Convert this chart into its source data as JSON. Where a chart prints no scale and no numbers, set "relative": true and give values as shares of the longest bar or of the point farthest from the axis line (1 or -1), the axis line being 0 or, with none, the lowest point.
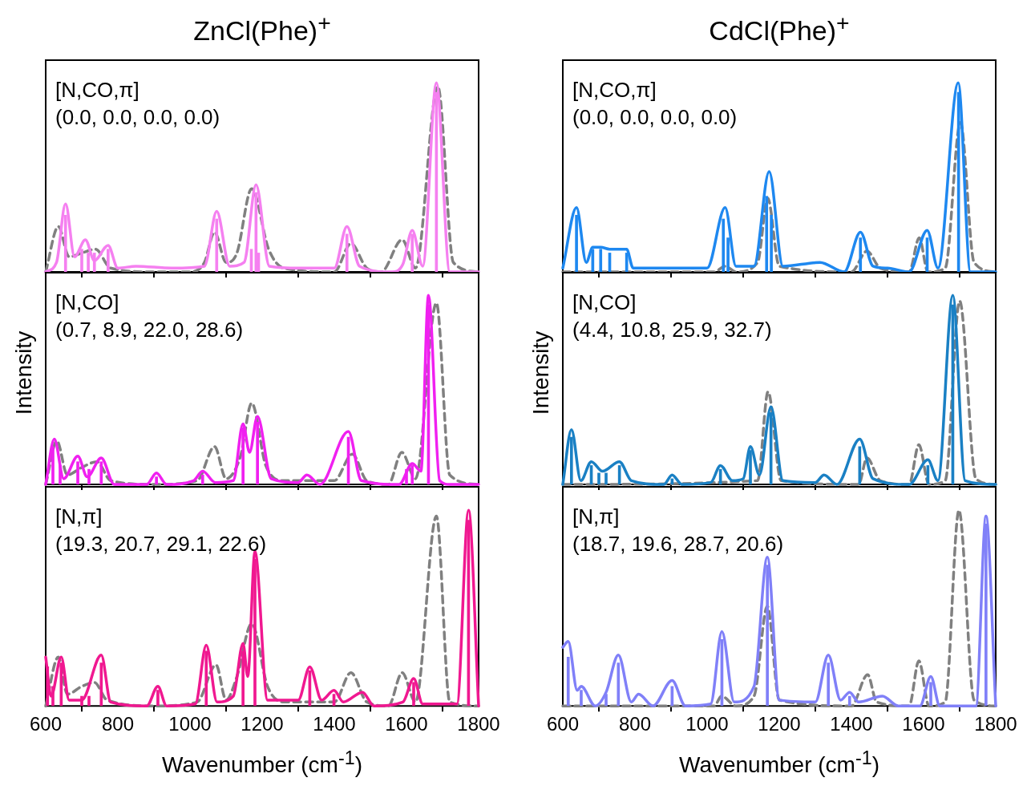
{
  "chart_data": [
    {
      "type": "line",
      "title": "ZnCl(Phe)$^{+}$",
      "relative": true,
      "xlim": [
        600,
        1800
      ],
      "xticks": [
        600,
        800,
        1000,
        1200,
        1400,
        1600,
        1800
      ],
      "tick_labels": false,
      "grid": false,
      "legend": false,
      "annotations": [
        "[N,CO,π]",
        "(0.0, 0.0, 0.0, 0.0)"
      ],
      "series": [
        {
          "type": "bar",
          "color": "#f580f0",
          "x": [
            655,
            700,
            718,
            735,
            773,
            1074,
            1170,
            1183,
            1190,
            1435,
            1616,
            1683
          ],
          "values": [
            0.3,
            0.12,
            0.1,
            0.1,
            0.12,
            0.28,
            0.12,
            0.42,
            0.1,
            0.2,
            0.2,
            0.95
          ]
        },
        {
          "type": "line",
          "color": "#f580f0",
          "line_style": "solid",
          "x": [
            600,
            630,
            655,
            680,
            710,
            735,
            773,
            800,
            850,
            950,
            1040,
            1074,
            1110,
            1150,
            1183,
            1220,
            1305,
            1400,
            1435,
            1470,
            1560,
            1590,
            1616,
            1645,
            1683,
            1720,
            1800
          ],
          "values": [
            0.0,
            0.05,
            0.36,
            0.08,
            0.17,
            0.06,
            0.14,
            0.02,
            0.03,
            0.02,
            0.03,
            0.32,
            0.03,
            0.05,
            0.46,
            0.03,
            0.02,
            0.02,
            0.24,
            0.03,
            0.0,
            0.04,
            0.22,
            0.03,
            1.0,
            0.0,
            0.0
          ]
        },
        {
          "type": "line",
          "color": "#808080",
          "line_style": "dashed",
          "x": [
            600,
            635,
            665,
            700,
            738,
            780,
            900,
            1000,
            1040,
            1068,
            1100,
            1130,
            1171,
            1218,
            1260,
            1400,
            1446,
            1490,
            1530,
            1588,
            1625,
            1687,
            1730,
            1800
          ],
          "values": [
            0.0,
            0.24,
            0.08,
            0.1,
            0.12,
            0.02,
            0.0,
            0.0,
            0.05,
            0.21,
            0.05,
            0.1,
            0.44,
            0.12,
            0.02,
            0.0,
            0.15,
            0.02,
            0.0,
            0.17,
            0.02,
            0.98,
            0.05,
            0.0
          ]
        }
      ]
    },
    {
      "type": "line",
      "title": "CdCl(Phe)$^{+}$",
      "relative": true,
      "xlim": [
        600,
        1800
      ],
      "xticks": [
        600,
        800,
        1000,
        1200,
        1400,
        1600,
        1800
      ],
      "tick_labels": false,
      "grid": false,
      "legend": false,
      "annotations": [
        "[N,CO,π]",
        "(0.0, 0.0, 0.0, 0.0)"
      ],
      "series": [
        {
          "type": "bar",
          "color": "#1e88f0",
          "x": [
            638,
            683,
            705,
            730,
            777,
            1045,
            1058,
            1165,
            1178,
            1425,
            1610,
            1697
          ],
          "values": [
            0.3,
            0.12,
            0.12,
            0.1,
            0.1,
            0.28,
            0.18,
            0.4,
            0.3,
            0.18,
            0.18,
            0.95
          ]
        },
        {
          "type": "line",
          "color": "#1e88f0",
          "line_style": "solid",
          "x": [
            600,
            638,
            665,
            683,
            705,
            730,
            777,
            795,
            850,
            1000,
            1050,
            1080,
            1130,
            1172,
            1210,
            1313,
            1380,
            1425,
            1460,
            1500,
            1560,
            1610,
            1640,
            1696,
            1730,
            1800
          ],
          "values": [
            0.02,
            0.34,
            0.05,
            0.13,
            0.13,
            0.12,
            0.12,
            0.02,
            0.02,
            0.02,
            0.34,
            0.03,
            0.03,
            0.53,
            0.03,
            0.05,
            0.0,
            0.21,
            0.03,
            0.02,
            0.0,
            0.22,
            0.02,
            1.0,
            0.0,
            0.0
          ]
        },
        {
          "type": "line",
          "color": "#808080",
          "line_style": "dashed",
          "x": [
            600,
            1020,
            1050,
            1080,
            1140,
            1168,
            1200,
            1400,
            1443,
            1480,
            1560,
            1588,
            1612,
            1660,
            1702,
            1740,
            1800
          ],
          "values": [
            0.0,
            0.0,
            0.03,
            0.0,
            0.05,
            0.39,
            0.03,
            0.0,
            0.11,
            0.02,
            0.0,
            0.18,
            0.0,
            0.02,
            0.79,
            0.05,
            0.0
          ]
        }
      ]
    },
    {
      "type": "line",
      "ylabel": "Intensity",
      "relative": true,
      "xlim": [
        600,
        1800
      ],
      "xticks": [
        600,
        800,
        1000,
        1200,
        1400,
        1600,
        1800
      ],
      "tick_labels": false,
      "grid": false,
      "legend": false,
      "annotations": [
        "[N,CO]",
        "(0.7, 8.9, 22.0, 28.6)"
      ],
      "series": [
        {
          "type": "bar",
          "color": "#f020f0",
          "x": [
            620,
            640,
            689,
            720,
            754,
            907,
            1035,
            1147,
            1187,
            1439,
            1600,
            1616,
            1661
          ],
          "values": [
            0.2,
            0.1,
            0.12,
            0.08,
            0.12,
            0.04,
            0.05,
            0.3,
            0.33,
            0.25,
            0.08,
            0.1,
            0.95
          ]
        },
        {
          "type": "line",
          "color": "#f020f0",
          "line_style": "solid",
          "x": [
            600,
            624,
            650,
            689,
            715,
            754,
            790,
            880,
            907,
            935,
            1010,
            1035,
            1070,
            1120,
            1147,
            1165,
            1187,
            1225,
            1300,
            1324,
            1360,
            1439,
            1475,
            1580,
            1616,
            1640,
            1661,
            1692,
            1720,
            1800
          ],
          "values": [
            0.0,
            0.24,
            0.03,
            0.15,
            0.04,
            0.14,
            0.0,
            0.0,
            0.06,
            0.0,
            0.02,
            0.07,
            0.01,
            0.02,
            0.32,
            0.17,
            0.36,
            0.03,
            0.01,
            0.05,
            0.0,
            0.28,
            0.02,
            0.0,
            0.11,
            0.07,
            1.0,
            0.02,
            0.0,
            0.0
          ]
        },
        {
          "type": "line",
          "color": "#808080",
          "line_style": "dashed",
          "x": [
            600,
            631,
            660,
            700,
            742,
            780,
            900,
            1020,
            1068,
            1100,
            1140,
            1171,
            1210,
            1260,
            1400,
            1450,
            1490,
            1550,
            1587,
            1625,
            1683,
            1720,
            1800
          ],
          "values": [
            0.0,
            0.23,
            0.05,
            0.09,
            0.12,
            0.02,
            0.0,
            0.02,
            0.2,
            0.03,
            0.15,
            0.43,
            0.1,
            0.02,
            0.02,
            0.16,
            0.02,
            0.0,
            0.17,
            0.03,
            0.96,
            0.05,
            0.0
          ]
        }
      ]
    },
    {
      "type": "line",
      "ylabel": "Intensity",
      "relative": true,
      "xlim": [
        600,
        1800
      ],
      "xticks": [
        600,
        800,
        1000,
        1200,
        1400,
        1600,
        1800
      ],
      "tick_labels": false,
      "grid": false,
      "legend": false,
      "annotations": [
        "[N,CO]",
        "(4.4, 10.8, 25.9, 32.7)"
      ],
      "series": [
        {
          "type": "bar",
          "color": "#1a80c4",
          "x": [
            624,
            679,
            700,
            720,
            757,
            903,
            1037,
            1120,
            1177,
            1423,
            1612,
            1681
          ],
          "values": [
            0.25,
            0.1,
            0.06,
            0.06,
            0.1,
            0.03,
            0.08,
            0.18,
            0.38,
            0.2,
            0.1,
            0.95
          ]
        },
        {
          "type": "line",
          "color": "#1a80c4",
          "line_style": "solid",
          "x": [
            600,
            624,
            650,
            679,
            710,
            757,
            790,
            880,
            903,
            930,
            1010,
            1037,
            1070,
            1100,
            1120,
            1145,
            1177,
            1210,
            1300,
            1324,
            1360,
            1423,
            1460,
            1560,
            1612,
            1640,
            1681,
            1715,
            1800
          ],
          "values": [
            0.0,
            0.29,
            0.02,
            0.12,
            0.07,
            0.12,
            0.02,
            0.0,
            0.05,
            0.0,
            0.01,
            0.1,
            0.02,
            0.03,
            0.2,
            0.05,
            0.41,
            0.02,
            0.01,
            0.05,
            0.0,
            0.24,
            0.03,
            0.0,
            0.13,
            0.02,
            1.0,
            0.02,
            0.0
          ]
        },
        {
          "type": "line",
          "color": "#808080",
          "line_style": "dashed",
          "x": [
            600,
            1140,
            1169,
            1205,
            1420,
            1443,
            1480,
            1560,
            1587,
            1615,
            1660,
            1700,
            1745,
            1800
          ],
          "values": [
            0.0,
            0.02,
            0.49,
            0.02,
            0.0,
            0.14,
            0.02,
            0.0,
            0.21,
            0.0,
            0.02,
            0.97,
            0.03,
            0.0
          ]
        }
      ]
    },
    {
      "type": "line",
      "xlabel": "Wavenumber (cm$^{-1}$)",
      "relative": true,
      "xlim": [
        600,
        1800
      ],
      "xticks": [
        600,
        800,
        1000,
        1200,
        1400,
        1600,
        1800
      ],
      "tick_labels": "x",
      "grid": false,
      "legend": false,
      "annotations": [
        "[N,π]",
        "(19.3, 20.7, 29.1, 22.6)"
      ],
      "series": [
        {
          "type": "bar",
          "color": "#f01890",
          "x": [
            605,
            620,
            643,
            700,
            720,
            754,
            911,
            1045,
            1147,
            1180,
            1332,
            1399,
            1620,
            1772
          ],
          "values": [
            0.2,
            0.1,
            0.22,
            0.05,
            0.05,
            0.22,
            0.08,
            0.28,
            0.28,
            0.75,
            0.18,
            0.06,
            0.12,
            0.95
          ]
        },
        {
          "type": "line",
          "color": "#f01890",
          "line_style": "solid",
          "x": [
            600,
            615,
            643,
            665,
            700,
            754,
            780,
            880,
            911,
            935,
            1015,
            1045,
            1075,
            1120,
            1147,
            1160,
            1180,
            1215,
            1300,
            1332,
            1365,
            1399,
            1425,
            1478,
            1510,
            1590,
            1620,
            1645,
            1740,
            1772,
            1800
          ],
          "values": [
            0.25,
            0.05,
            0.25,
            0.03,
            0.03,
            0.26,
            0.02,
            0.0,
            0.1,
            0.0,
            0.01,
            0.31,
            0.02,
            0.05,
            0.32,
            0.15,
            0.79,
            0.03,
            0.03,
            0.2,
            0.03,
            0.08,
            0.02,
            0.07,
            0.0,
            0.02,
            0.14,
            0.01,
            0.01,
            1.0,
            0.0
          ]
        },
        {
          "type": "line",
          "color": "#808080",
          "line_style": "dashed",
          "x": [
            600,
            635,
            660,
            700,
            735,
            770,
            900,
            1020,
            1072,
            1100,
            1130,
            1171,
            1215,
            1260,
            1400,
            1446,
            1490,
            1550,
            1588,
            1625,
            1683,
            1720,
            1800
          ],
          "values": [
            0.0,
            0.25,
            0.06,
            0.1,
            0.12,
            0.03,
            0.0,
            0.02,
            0.21,
            0.03,
            0.15,
            0.42,
            0.1,
            0.02,
            0.02,
            0.17,
            0.02,
            0.0,
            0.17,
            0.02,
            0.97,
            0.02,
            0.0
          ]
        }
      ]
    },
    {
      "type": "line",
      "xlabel": "Wavenumber (cm$^{-1}$)",
      "relative": true,
      "xlim": [
        600,
        1800
      ],
      "xticks": [
        600,
        800,
        1000,
        1200,
        1400,
        1600,
        1800
      ],
      "tick_labels": "x",
      "grid": false,
      "legend": false,
      "annotations": [
        "[N,π]",
        "(18.7, 19.6, 28.7, 20.6)"
      ],
      "series": [
        {
          "type": "bar",
          "color": "#8080f8",
          "x": [
            615,
            651,
            720,
            754,
            903,
            1041,
            1167,
            1336,
            1395,
            1620,
            1773
          ],
          "values": [
            0.25,
            0.08,
            0.06,
            0.22,
            0.1,
            0.34,
            0.72,
            0.22,
            0.05,
            0.12,
            0.93
          ]
        },
        {
          "type": "line",
          "color": "#8080f8",
          "line_style": "solid",
          "x": [
            600,
            615,
            640,
            651,
            690,
            720,
            754,
            790,
            810,
            850,
            903,
            940,
            1010,
            1041,
            1075,
            1130,
            1167,
            1200,
            1300,
            1336,
            1370,
            1395,
            1420,
            1486,
            1530,
            1590,
            1620,
            1645,
            1745,
            1773,
            1800
          ],
          "values": [
            0.3,
            0.33,
            0.08,
            0.1,
            0.0,
            0.07,
            0.26,
            0.02,
            0.06,
            0.0,
            0.13,
            0.0,
            0.01,
            0.38,
            0.02,
            0.1,
            0.76,
            0.03,
            0.02,
            0.26,
            0.03,
            0.07,
            0.02,
            0.05,
            0.0,
            0.0,
            0.15,
            0.0,
            0.0,
            0.97,
            0.0
          ]
        },
        {
          "type": "line",
          "color": "#808080",
          "line_style": "dashed",
          "x": [
            600,
            1020,
            1040,
            1080,
            1130,
            1167,
            1200,
            1400,
            1445,
            1470,
            1560,
            1587,
            1615,
            1660,
            1698,
            1740,
            1800
          ],
          "values": [
            0.0,
            0.0,
            0.05,
            0.0,
            0.05,
            0.51,
            0.03,
            0.0,
            0.16,
            0.02,
            0.0,
            0.23,
            0.0,
            0.02,
            1.0,
            0.03,
            0.0
          ]
        }
      ]
    }
  ]
}
